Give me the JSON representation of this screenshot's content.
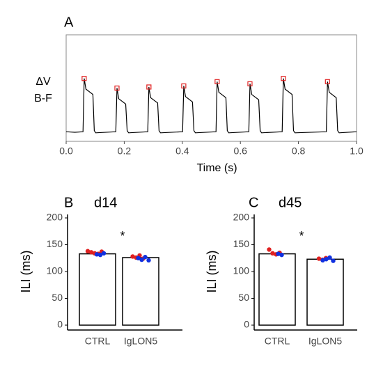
{
  "chart_data": [
    {
      "type": "line",
      "panel": "A",
      "ylabel": [
        "ΔV",
        "B-F"
      ],
      "xlabel": "Time (s)",
      "xlim": [
        0,
        1
      ],
      "ylim": [
        0,
        1
      ],
      "color": "#000000",
      "xticks": [
        {
          "value": 0,
          "label": "0.0"
        },
        0.2,
        0.4,
        0.6,
        0.8,
        {
          "value": 1,
          "label": "1.0"
        }
      ],
      "x": [
        0,
        0.03,
        0.058,
        0.062,
        0.068,
        0.092,
        0.097,
        0.102,
        0.171,
        0.175,
        0.181,
        0.205,
        0.21,
        0.215,
        0.281,
        0.285,
        0.291,
        0.315,
        0.32,
        0.325,
        0.401,
        0.405,
        0.411,
        0.435,
        0.44,
        0.445,
        0.516,
        0.52,
        0.526,
        0.55,
        0.555,
        0.56,
        0.629,
        0.633,
        0.639,
        0.663,
        0.668,
        0.673,
        0.744,
        0.748,
        0.754,
        0.778,
        0.783,
        0.788,
        0.896,
        0.9,
        0.906,
        0.93,
        0.935,
        0.94,
        1
      ],
      "values": [
        0.09,
        0.085,
        0.09,
        0.59,
        0.49,
        0.44,
        0.1,
        0.08,
        0.09,
        0.5,
        0.4,
        0.35,
        0.1,
        0.08,
        0.09,
        0.51,
        0.41,
        0.36,
        0.1,
        0.08,
        0.09,
        0.52,
        0.42,
        0.37,
        0.1,
        0.08,
        0.09,
        0.56,
        0.46,
        0.41,
        0.1,
        0.08,
        0.09,
        0.54,
        0.44,
        0.39,
        0.1,
        0.08,
        0.09,
        0.59,
        0.49,
        0.44,
        0.1,
        0.08,
        0.09,
        0.56,
        0.46,
        0.41,
        0.1,
        0.08,
        0.09
      ],
      "peaks": {
        "color": "#e02020",
        "x": [
          0.062,
          0.175,
          0.285,
          0.405,
          0.52,
          0.633,
          0.748,
          0.9
        ],
        "values": [
          0.59,
          0.5,
          0.51,
          0.52,
          0.56,
          0.54,
          0.59,
          0.56
        ]
      }
    },
    {
      "type": "bar",
      "panel": "B",
      "title": "d14",
      "ylabel": "ILI (ms)",
      "annotation": "*",
      "categories": [
        "CTRL",
        "IgLON5"
      ],
      "values": [
        133,
        126
      ],
      "color": "#ffffff",
      "ylim": [
        0,
        200
      ],
      "yticks": [
        0,
        50,
        100,
        150,
        200
      ],
      "dots": [
        {
          "color": "#e02020",
          "values": [
            [
              138,
              136,
              134,
              133,
              137
            ],
            [
              128,
              126,
              130,
              124
            ]
          ]
        },
        {
          "color": "#1030e0",
          "values": [
            [
              132,
              131,
              134
            ],
            [
              125,
              122,
              127,
              121
            ]
          ]
        }
      ]
    },
    {
      "type": "bar",
      "panel": "C",
      "title": "d45",
      "ylabel": "ILI (ms)",
      "annotation": "*",
      "categories": [
        "CTRL",
        "IgLON5"
      ],
      "values": [
        133,
        123
      ],
      "color": "#ffffff",
      "ylim": [
        0,
        200
      ],
      "yticks": [
        0,
        50,
        100,
        150,
        200
      ],
      "dots": [
        {
          "color": "#e02020",
          "values": [
            [
              141,
              134,
              132,
              135
            ],
            [
              124,
              122,
              125
            ]
          ]
        },
        {
          "color": "#1030e0",
          "values": [
            [
              133,
              131
            ],
            [
              121,
              123,
              126,
              120
            ]
          ]
        }
      ]
    }
  ]
}
